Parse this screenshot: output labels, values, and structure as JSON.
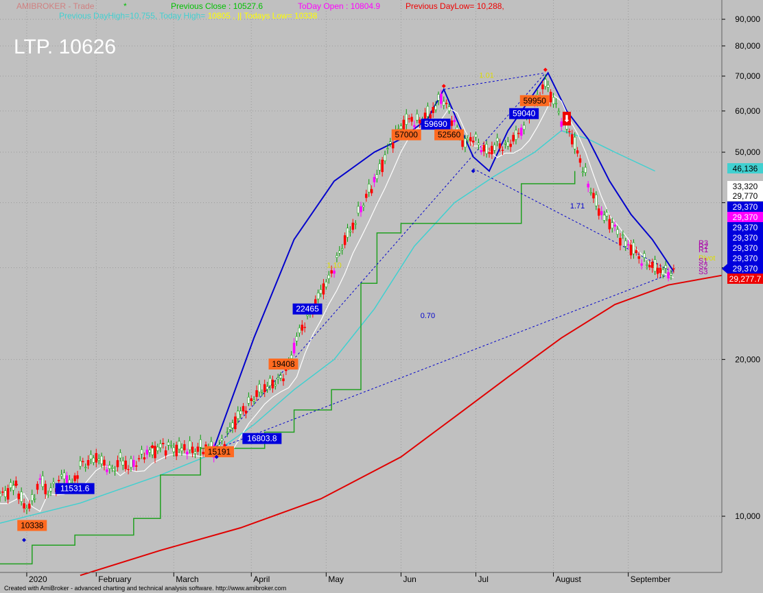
{
  "header": {
    "title": "AMIBROKER - Trade",
    "star": "*",
    "prev_close": "Previous Close : 10527.6",
    "today_open": "ToDay Open : 10804.9",
    "prev_day_low": "Previous DayLow=   10,288,",
    "line2_a": "Previous DayHigh=10,755, Today High= ",
    "line2_b": "10805",
    "line2_c": " , || Todays Low= 10338",
    "ltp": "LTP. 10626",
    "footer": "Created with AmiBroker - advanced charting and technical analysis software. http://www.amibroker.com"
  },
  "colors": {
    "background": "#c0c0c0",
    "grid": "#9a9a9a",
    "price_up": "#00a000",
    "price_down": "#ff0000",
    "pattern": "#0000cc",
    "ema_long": "#e00000",
    "ema_mid": "#40d0d0",
    "ema_fast": "#ffffff",
    "trail": "#20a020",
    "tag_orange": "#ff6a20",
    "tag_blue": "#0000dd",
    "tag_magenta": "#ff00ff",
    "tag_red": "#ee0000"
  },
  "chart_data": {
    "type": "candlestick",
    "y_scale": "log",
    "ylim": [
      7800,
      98000
    ],
    "xlim": [
      0,
      270
    ],
    "y_ticks": [
      {
        "v": 10000,
        "label": "10,000"
      },
      {
        "v": 20000,
        "label": "20,000"
      },
      {
        "v": 30000,
        "label": ""
      },
      {
        "v": 40000,
        "label": ""
      },
      {
        "v": 50000,
        "label": "50,000"
      },
      {
        "v": 60000,
        "label": "60,000"
      },
      {
        "v": 70000,
        "label": "70,000"
      },
      {
        "v": 80000,
        "label": "80,000"
      },
      {
        "v": 90000,
        "label": "90,000"
      }
    ],
    "months": [
      {
        "x": 10,
        "label": "2020"
      },
      {
        "x": 36,
        "label": "February"
      },
      {
        "x": 65,
        "label": "March"
      },
      {
        "x": 94,
        "label": "April"
      },
      {
        "x": 122,
        "label": "May"
      },
      {
        "x": 150,
        "label": "Jun"
      },
      {
        "x": 178,
        "label": "Jul"
      },
      {
        "x": 207,
        "label": "August"
      },
      {
        "x": 235,
        "label": "September"
      }
    ],
    "price_anchors": [
      [
        0,
        10900
      ],
      [
        3,
        11200
      ],
      [
        6,
        11500
      ],
      [
        9,
        10400
      ],
      [
        12,
        10600
      ],
      [
        15,
        11800
      ],
      [
        18,
        11100
      ],
      [
        21,
        11500
      ],
      [
        24,
        12000
      ],
      [
        27,
        11400
      ],
      [
        30,
        12500
      ],
      [
        33,
        12700
      ],
      [
        36,
        13000
      ],
      [
        39,
        12600
      ],
      [
        42,
        12200
      ],
      [
        45,
        12900
      ],
      [
        48,
        12400
      ],
      [
        51,
        12700
      ],
      [
        54,
        13200
      ],
      [
        57,
        13300
      ],
      [
        60,
        13600
      ],
      [
        63,
        13600
      ],
      [
        66,
        13500
      ],
      [
        69,
        13500
      ],
      [
        72,
        13400
      ],
      [
        75,
        13500
      ],
      [
        78,
        13500
      ],
      [
        81,
        13400
      ],
      [
        84,
        14000
      ],
      [
        87,
        15000
      ],
      [
        90,
        15800
      ],
      [
        93,
        16400
      ],
      [
        96,
        17200
      ],
      [
        99,
        17600
      ],
      [
        102,
        18000
      ],
      [
        105,
        18300
      ],
      [
        108,
        19500
      ],
      [
        111,
        22000
      ],
      [
        114,
        23500
      ],
      [
        117,
        25000
      ],
      [
        120,
        27000
      ],
      [
        123,
        28500
      ],
      [
        126,
        31000
      ],
      [
        129,
        34000
      ],
      [
        132,
        36000
      ],
      [
        135,
        39000
      ],
      [
        138,
        42000
      ],
      [
        141,
        45000
      ],
      [
        144,
        49000
      ],
      [
        147,
        53000
      ],
      [
        150,
        56000
      ],
      [
        153,
        58000
      ],
      [
        156,
        57000
      ],
      [
        159,
        58500
      ],
      [
        162,
        60000
      ],
      [
        165,
        64000
      ],
      [
        168,
        60000
      ],
      [
        171,
        55000
      ],
      [
        174,
        52000
      ],
      [
        177,
        53500
      ],
      [
        180,
        51000
      ],
      [
        183,
        50000
      ],
      [
        186,
        52000
      ],
      [
        189,
        51000
      ],
      [
        192,
        53000
      ],
      [
        195,
        55000
      ],
      [
        198,
        59000
      ],
      [
        201,
        63000
      ],
      [
        204,
        68000
      ],
      [
        207,
        63000
      ],
      [
        210,
        58000
      ],
      [
        213,
        55000
      ],
      [
        216,
        50000
      ],
      [
        219,
        45000
      ],
      [
        222,
        41000
      ],
      [
        225,
        38000
      ],
      [
        228,
        37000
      ],
      [
        231,
        35000
      ],
      [
        234,
        33500
      ],
      [
        237,
        32500
      ],
      [
        240,
        31000
      ],
      [
        243,
        30500
      ],
      [
        246,
        29800
      ],
      [
        249,
        29500
      ],
      [
        252,
        29370
      ]
    ],
    "series": [
      {
        "key": "ema_long",
        "points": [
          [
            30,
            7700
          ],
          [
            60,
            8600
          ],
          [
            90,
            9500
          ],
          [
            120,
            10800
          ],
          [
            150,
            13000
          ],
          [
            170,
            15500
          ],
          [
            190,
            18500
          ],
          [
            210,
            22000
          ],
          [
            230,
            25500
          ],
          [
            250,
            27800
          ],
          [
            270,
            29000
          ]
        ]
      },
      {
        "key": "ema_mid",
        "points": [
          [
            0,
            9700
          ],
          [
            30,
            10600
          ],
          [
            60,
            12000
          ],
          [
            80,
            13200
          ],
          [
            95,
            15000
          ],
          [
            110,
            17500
          ],
          [
            125,
            20000
          ],
          [
            140,
            25000
          ],
          [
            155,
            33000
          ],
          [
            170,
            40000
          ],
          [
            185,
            45000
          ],
          [
            200,
            50000
          ],
          [
            210,
            55000
          ],
          [
            220,
            53000
          ],
          [
            230,
            50000
          ],
          [
            245,
            46000
          ]
        ]
      },
      {
        "key": "trail",
        "points": [
          [
            0,
            8100
          ],
          [
            12,
            8100
          ],
          [
            12,
            8800
          ],
          [
            28,
            8800
          ],
          [
            28,
            9200
          ],
          [
            50,
            9200
          ],
          [
            50,
            9900
          ],
          [
            60,
            9900
          ],
          [
            60,
            12000
          ],
          [
            75,
            12000
          ],
          [
            75,
            13500
          ],
          [
            99,
            13500
          ],
          [
            99,
            14500
          ],
          [
            110,
            14500
          ],
          [
            110,
            16000
          ],
          [
            124,
            16000
          ],
          [
            124,
            17500
          ],
          [
            135,
            17500
          ],
          [
            135,
            28000
          ],
          [
            141,
            28000
          ],
          [
            141,
            35000
          ],
          [
            150,
            35000
          ],
          [
            150,
            36500
          ],
          [
            180,
            36500
          ],
          [
            195,
            36500
          ],
          [
            195,
            43500
          ],
          [
            215,
            43500
          ],
          [
            215,
            46000
          ]
        ]
      },
      {
        "key": "pattern_arc",
        "points": [
          [
            80,
            13500
          ],
          [
            95,
            22000
          ],
          [
            110,
            34000
          ],
          [
            125,
            44000
          ],
          [
            140,
            50000
          ],
          [
            150,
            53000
          ],
          [
            160,
            58000
          ],
          [
            166,
            66000
          ],
          [
            172,
            56000
          ],
          [
            177,
            49000
          ],
          [
            183,
            46000
          ],
          [
            190,
            55000
          ],
          [
            198,
            63000
          ],
          [
            205,
            71000
          ],
          [
            212,
            60000
          ],
          [
            220,
            53000
          ],
          [
            228,
            44000
          ],
          [
            236,
            38000
          ],
          [
            244,
            34000
          ],
          [
            252,
            29500
          ]
        ]
      }
    ],
    "labels": [
      {
        "text": "10338",
        "x": 12,
        "y": 9600,
        "style": "orange"
      },
      {
        "text": "11531.6",
        "x": 28,
        "y": 11300,
        "style": "blue"
      },
      {
        "text": "15191",
        "x": 82,
        "y": 13300,
        "style": "orange"
      },
      {
        "text": "16803.8",
        "x": 98,
        "y": 14100,
        "style": "blue"
      },
      {
        "text": "19408",
        "x": 106,
        "y": 19600,
        "style": "orange"
      },
      {
        "text": "22465",
        "x": 115,
        "y": 25000,
        "style": "blue"
      },
      {
        "text": "57000",
        "x": 152,
        "y": 54000,
        "style": "orange"
      },
      {
        "text": "59690",
        "x": 163,
        "y": 56600,
        "style": "blue"
      },
      {
        "text": "52560",
        "x": 168,
        "y": 54000,
        "style": "orange"
      },
      {
        "text": "59040",
        "x": 196,
        "y": 59300,
        "style": "blue"
      },
      {
        "text": "59950",
        "x": 200,
        "y": 62800,
        "style": "orange"
      }
    ],
    "pattern_text": [
      {
        "text": "1.01",
        "x": 182,
        "y": 69500
      },
      {
        "text": "1.71",
        "x": 216,
        "y": 39000
      },
      {
        "text": "0.70",
        "x": 160,
        "y": 24000
      },
      {
        "text": "1.10",
        "x": 125,
        "y": 30000
      }
    ],
    "right_tags": [
      {
        "text": "46,136",
        "bg": "#40d0d0",
        "fg": "#000000"
      },
      {
        "text": "33,320",
        "bg": "#ffffff",
        "fg": "#000000"
      },
      {
        "text": "29,770",
        "bg": "#ffffff",
        "fg": "#000000"
      },
      {
        "text": "29,370",
        "bg": "#0000dd",
        "fg": "#ffffff"
      },
      {
        "text": "29,370",
        "bg": "#ff00ff",
        "fg": "#ffffff"
      },
      {
        "text": "29,370",
        "bg": "#0000dd",
        "fg": "#ffffff"
      },
      {
        "text": "29,370",
        "bg": "#0000dd",
        "fg": "#ffffff"
      },
      {
        "text": "29,370",
        "bg": "#0000dd",
        "fg": "#ffffff"
      },
      {
        "text": "29,370",
        "bg": "#0000dd",
        "fg": "#ffffff"
      },
      {
        "text": "29,370",
        "bg": "#0000dd",
        "fg": "#ffffff"
      },
      {
        "text": "29,277.7",
        "bg": "#ee0000",
        "fg": "#ffffff"
      }
    ],
    "pivot_labels": [
      "R3",
      "R2",
      "R1",
      "Pivot",
      "S1",
      "S2",
      "S3"
    ]
  }
}
